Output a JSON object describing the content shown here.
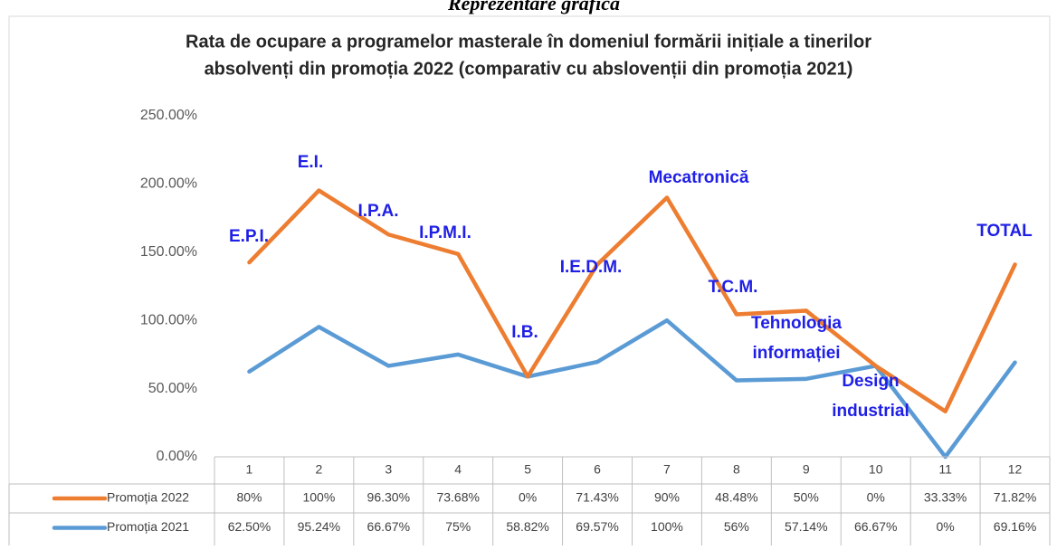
{
  "header": {
    "caption": "Reprezentare grafică"
  },
  "chart_data": {
    "type": "stacked_line",
    "title": [
      "Rata de ocupare a programelor masterale în domeniul formării inițiale a tinerilor",
      "absolvenți din promoția 2022 (comparativ cu abslovenții din promoția 2021)"
    ],
    "categories": [
      "1",
      "2",
      "3",
      "4",
      "5",
      "6",
      "7",
      "8",
      "9",
      "10",
      "11",
      "12"
    ],
    "series": [
      {
        "name": "Promoția 2022",
        "color": "#ed7d31",
        "values": [
          80,
          100,
          96.3,
          73.68,
          0,
          71.43,
          90,
          48.48,
          50,
          0,
          33.33,
          71.82
        ],
        "value_labels": [
          "80%",
          "100%",
          "96.30%",
          "73.68%",
          "0%",
          "71.43%",
          "90%",
          "48.48%",
          "50%",
          "0%",
          "33.33%",
          "71.82%"
        ]
      },
      {
        "name": "Promoția 2021",
        "color": "#5b9bd5",
        "values": [
          62.5,
          95.24,
          66.67,
          75,
          58.82,
          69.57,
          100,
          56,
          57.14,
          66.67,
          0,
          69.16
        ],
        "value_labels": [
          "62.50%",
          "95.24%",
          "66.67%",
          "75%",
          "58.82%",
          "69.57%",
          "100%",
          "56%",
          "57.14%",
          "66.67%",
          "0%",
          "69.16%"
        ]
      }
    ],
    "ylim": [
      0,
      250
    ],
    "yticks": [
      {
        "value": 0,
        "label": "0.00%"
      },
      {
        "value": 50,
        "label": "50.00%"
      },
      {
        "value": 100,
        "label": "100.00%"
      },
      {
        "value": 150,
        "label": "150.00%"
      },
      {
        "value": 200,
        "label": "200.00%"
      },
      {
        "value": 250,
        "label": "250.00%"
      }
    ],
    "annotations": [
      [
        "E.P.I."
      ],
      [
        "E.I."
      ],
      [
        "I.P.A."
      ],
      [
        "I.P.M.I."
      ],
      [
        "I.B."
      ],
      [
        "I.E.D.M."
      ],
      [
        "Mecatronică"
      ],
      [
        "T.C.M."
      ],
      [
        "Tehnologia",
        "informației"
      ],
      [
        "Design",
        "industrial"
      ],
      [
        "TOTAL"
      ]
    ]
  }
}
